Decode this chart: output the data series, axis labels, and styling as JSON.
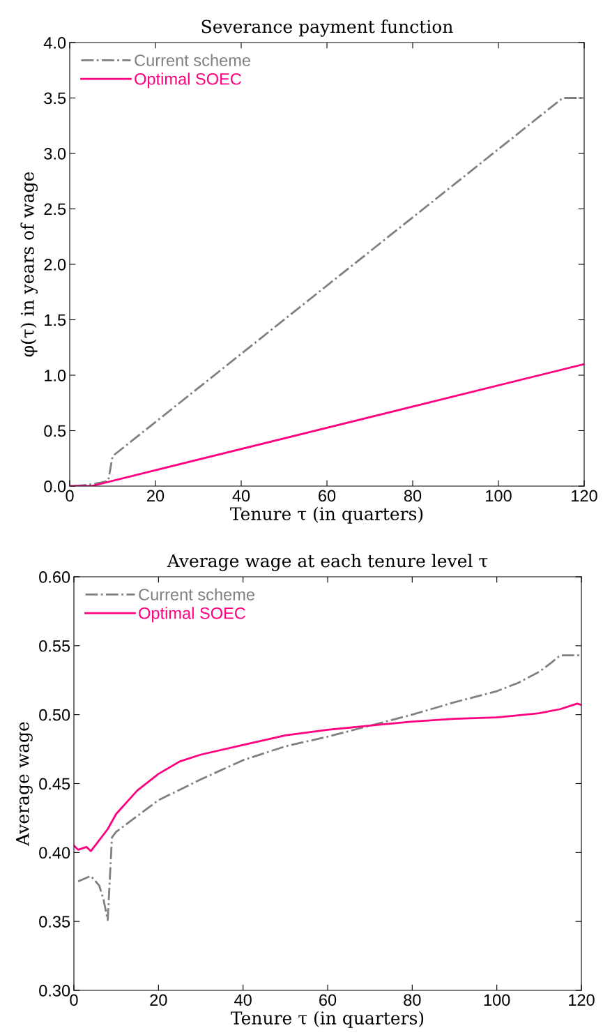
{
  "chart_data": [
    {
      "type": "line",
      "title": "Severance payment function",
      "xlabel": "Tenure τ (in quarters)",
      "ylabel": "φ(τ) in years of wage",
      "xlim": [
        0,
        120
      ],
      "xticks": [
        0,
        20,
        40,
        60,
        80,
        100,
        120
      ],
      "ylim": [
        0,
        4
      ],
      "yticks": [
        {
          "value": 0,
          "label": "0.0"
        },
        {
          "value": 0.5,
          "label": "0.5"
        },
        {
          "value": 1,
          "label": "1.0"
        },
        {
          "value": 1.5,
          "label": "1.5"
        },
        {
          "value": 2,
          "label": "2.0"
        },
        {
          "value": 2.5,
          "label": "2.5"
        },
        {
          "value": 3,
          "label": "3.0"
        },
        {
          "value": 3.5,
          "label": "3.5"
        },
        {
          "value": 4,
          "label": "4.0"
        }
      ],
      "legend": "top left",
      "grid": false,
      "series": [
        {
          "name": "Current scheme",
          "color": "#808080",
          "line_style": "dashdot",
          "x": [
            1,
            4,
            7,
            9,
            10,
            115,
            120
          ],
          "values": [
            0,
            0.01,
            0.03,
            0.05,
            0.27,
            3.5,
            3.5
          ]
        },
        {
          "name": "Optimal SOEC",
          "color": "#ff0080",
          "line_style": "solid",
          "x": [
            0,
            5,
            120
          ],
          "values": [
            0,
            0,
            1.1
          ]
        }
      ]
    },
    {
      "type": "line",
      "title": "Average wage at each tenure level τ",
      "xlabel": "Tenure τ (in quarters)",
      "ylabel": "Average wage",
      "xlim": [
        0,
        120
      ],
      "xticks": [
        0,
        20,
        40,
        60,
        80,
        100,
        120
      ],
      "ylim": [
        0.3,
        0.6
      ],
      "yticks": [
        {
          "value": 0.3,
          "label": "0.30"
        },
        {
          "value": 0.35,
          "label": "0.35"
        },
        {
          "value": 0.4,
          "label": "0.40"
        },
        {
          "value": 0.45,
          "label": "0.45"
        },
        {
          "value": 0.5,
          "label": "0.50"
        },
        {
          "value": 0.55,
          "label": "0.55"
        },
        {
          "value": 0.6,
          "label": "0.60"
        }
      ],
      "legend": "top left",
      "grid": false,
      "series": [
        {
          "name": "Current scheme",
          "color": "#808080",
          "line_style": "dashdot",
          "x": [
            1,
            4,
            6,
            7,
            8,
            9,
            10,
            20,
            30,
            40,
            50,
            60,
            70,
            80,
            90,
            100,
            105,
            110,
            113,
            115,
            120
          ],
          "values": [
            0.379,
            0.383,
            0.376,
            0.366,
            0.351,
            0.411,
            0.415,
            0.438,
            0.453,
            0.467,
            0.477,
            0.484,
            0.492,
            0.5,
            0.509,
            0.517,
            0.523,
            0.531,
            0.538,
            0.543,
            0.543
          ]
        },
        {
          "name": "Optimal SOEC",
          "color": "#ff0080",
          "line_style": "solid",
          "x": [
            0,
            1,
            3,
            4,
            6,
            8,
            10,
            15,
            20,
            25,
            30,
            40,
            50,
            60,
            70,
            80,
            90,
            100,
            110,
            115,
            119,
            120
          ],
          "values": [
            0.405,
            0.402,
            0.404,
            0.401,
            0.409,
            0.417,
            0.428,
            0.445,
            0.457,
            0.466,
            0.471,
            0.478,
            0.485,
            0.489,
            0.492,
            0.495,
            0.497,
            0.498,
            0.501,
            0.504,
            0.508,
            0.507
          ]
        }
      ]
    }
  ]
}
